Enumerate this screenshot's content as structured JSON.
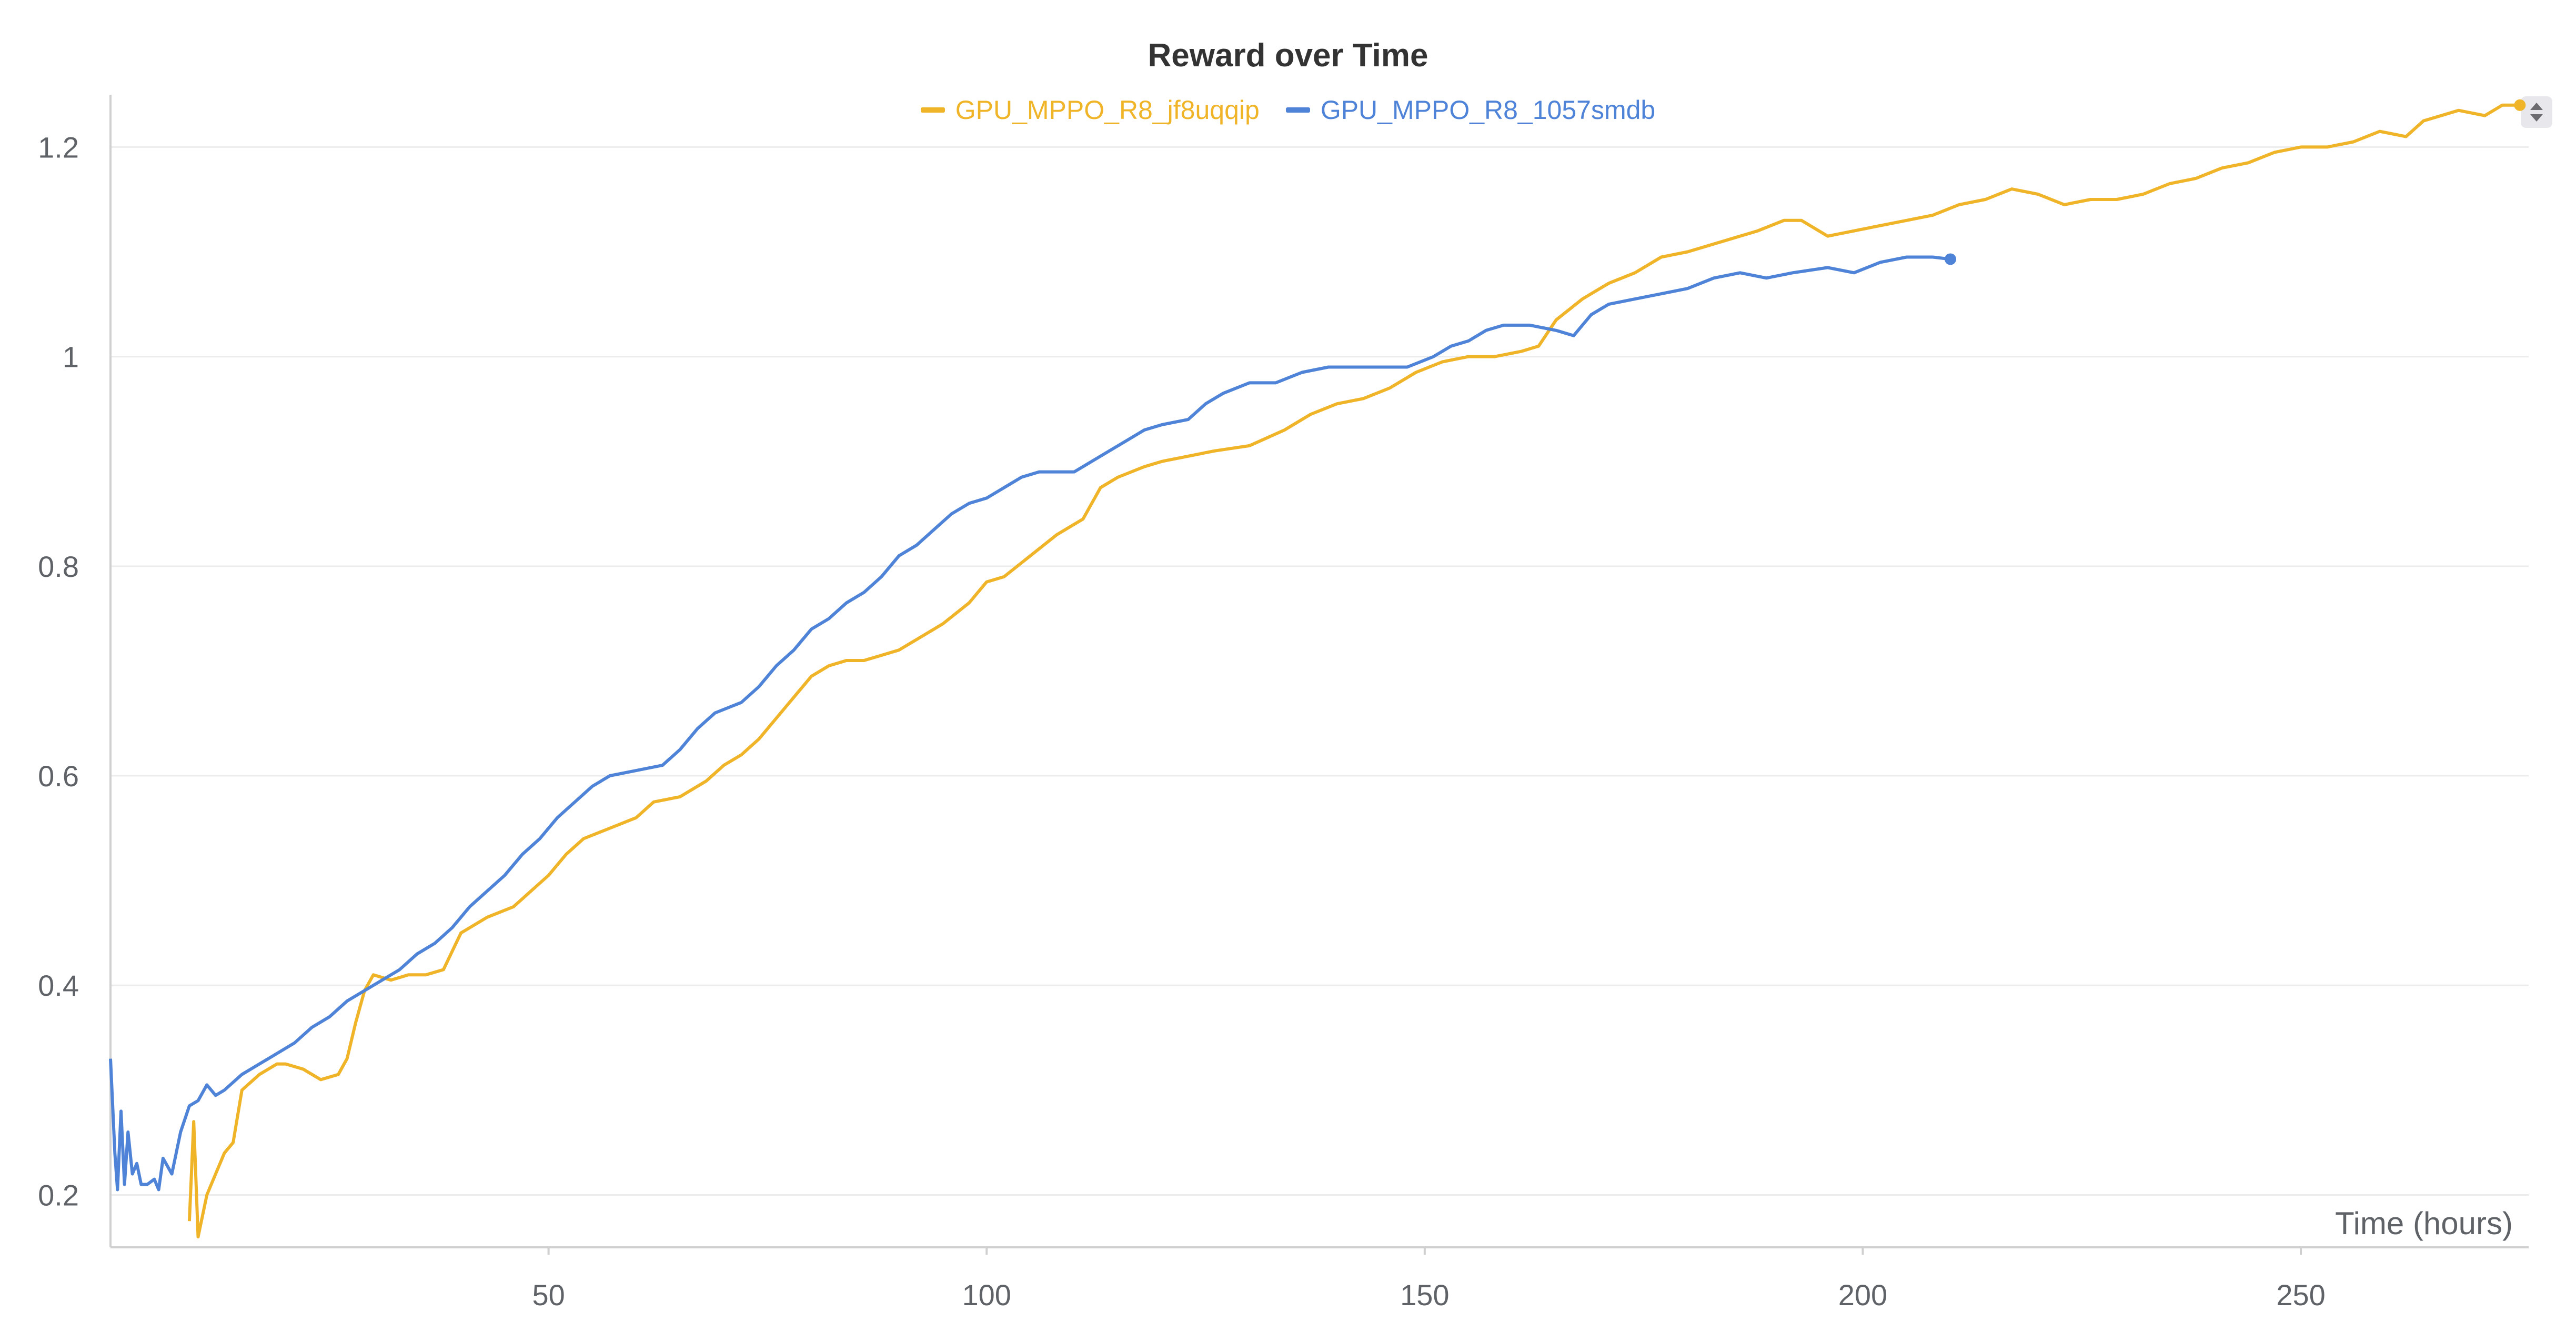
{
  "chart_data": {
    "type": "line",
    "title": "Reward over Time",
    "xlabel": "Time (hours)",
    "ylabel": "",
    "xlim": [
      0,
      276
    ],
    "ylim": [
      0.15,
      1.265
    ],
    "x_ticks": [
      50,
      100,
      150,
      200,
      250
    ],
    "y_ticks": [
      0.2,
      0.4,
      0.6,
      0.8,
      1,
      1.2
    ],
    "y_tick_labels": [
      "0.2",
      "0.4",
      "0.6",
      "0.8",
      "1",
      "1.2"
    ],
    "grid": "horizontal",
    "legend_position": "top-center",
    "series": [
      {
        "name": "GPU_MPPO_R8_jf8uqqip",
        "color": "#f0b429",
        "points": [
          [
            9,
            0.175
          ],
          [
            9.5,
            0.27
          ],
          [
            10,
            0.16
          ],
          [
            11,
            0.2
          ],
          [
            12,
            0.22
          ],
          [
            13,
            0.24
          ],
          [
            14,
            0.25
          ],
          [
            15,
            0.3
          ],
          [
            17,
            0.315
          ],
          [
            19,
            0.325
          ],
          [
            20,
            0.325
          ],
          [
            22,
            0.32
          ],
          [
            24,
            0.31
          ],
          [
            26,
            0.315
          ],
          [
            27,
            0.33
          ],
          [
            28,
            0.365
          ],
          [
            29,
            0.395
          ],
          [
            30,
            0.41
          ],
          [
            32,
            0.405
          ],
          [
            34,
            0.41
          ],
          [
            36,
            0.41
          ],
          [
            38,
            0.415
          ],
          [
            40,
            0.45
          ],
          [
            43,
            0.465
          ],
          [
            46,
            0.475
          ],
          [
            48,
            0.49
          ],
          [
            50,
            0.505
          ],
          [
            52,
            0.525
          ],
          [
            54,
            0.54
          ],
          [
            57,
            0.55
          ],
          [
            60,
            0.56
          ],
          [
            62,
            0.575
          ],
          [
            65,
            0.58
          ],
          [
            68,
            0.595
          ],
          [
            70,
            0.61
          ],
          [
            72,
            0.62
          ],
          [
            74,
            0.635
          ],
          [
            76,
            0.655
          ],
          [
            78,
            0.675
          ],
          [
            80,
            0.695
          ],
          [
            82,
            0.705
          ],
          [
            84,
            0.71
          ],
          [
            86,
            0.71
          ],
          [
            88,
            0.715
          ],
          [
            90,
            0.72
          ],
          [
            92,
            0.73
          ],
          [
            95,
            0.745
          ],
          [
            98,
            0.765
          ],
          [
            100,
            0.785
          ],
          [
            102,
            0.79
          ],
          [
            105,
            0.81
          ],
          [
            108,
            0.83
          ],
          [
            111,
            0.845
          ],
          [
            112,
            0.86
          ],
          [
            113,
            0.875
          ],
          [
            115,
            0.885
          ],
          [
            118,
            0.895
          ],
          [
            120,
            0.9
          ],
          [
            123,
            0.905
          ],
          [
            126,
            0.91
          ],
          [
            130,
            0.915
          ],
          [
            134,
            0.93
          ],
          [
            137,
            0.945
          ],
          [
            140,
            0.955
          ],
          [
            143,
            0.96
          ],
          [
            146,
            0.97
          ],
          [
            149,
            0.985
          ],
          [
            152,
            0.995
          ],
          [
            155,
            1.0
          ],
          [
            158,
            1.0
          ],
          [
            161,
            1.005
          ],
          [
            163,
            1.01
          ],
          [
            165,
            1.035
          ],
          [
            168,
            1.055
          ],
          [
            171,
            1.07
          ],
          [
            174,
            1.08
          ],
          [
            177,
            1.095
          ],
          [
            180,
            1.1
          ],
          [
            184,
            1.11
          ],
          [
            188,
            1.12
          ],
          [
            191,
            1.13
          ],
          [
            193,
            1.13
          ],
          [
            196,
            1.115
          ],
          [
            199,
            1.12
          ],
          [
            202,
            1.125
          ],
          [
            205,
            1.13
          ],
          [
            208,
            1.135
          ],
          [
            211,
            1.145
          ],
          [
            214,
            1.15
          ],
          [
            217,
            1.16
          ],
          [
            220,
            1.155
          ],
          [
            223,
            1.145
          ],
          [
            226,
            1.15
          ],
          [
            229,
            1.15
          ],
          [
            232,
            1.155
          ],
          [
            235,
            1.165
          ],
          [
            238,
            1.17
          ],
          [
            241,
            1.18
          ],
          [
            244,
            1.185
          ],
          [
            247,
            1.195
          ],
          [
            250,
            1.2
          ],
          [
            253,
            1.2
          ],
          [
            256,
            1.205
          ],
          [
            259,
            1.215
          ],
          [
            262,
            1.21
          ],
          [
            264,
            1.225
          ],
          [
            266,
            1.23
          ],
          [
            268,
            1.235
          ],
          [
            271,
            1.23
          ],
          [
            273,
            1.24
          ],
          [
            275,
            1.24
          ]
        ]
      },
      {
        "name": "GPU_MPPO_R8_1057smdb",
        "color": "#4e83d7",
        "points": [
          [
            0,
            0.33
          ],
          [
            0.5,
            0.24
          ],
          [
            0.8,
            0.205
          ],
          [
            1.2,
            0.28
          ],
          [
            1.6,
            0.21
          ],
          [
            2,
            0.26
          ],
          [
            2.5,
            0.22
          ],
          [
            3,
            0.23
          ],
          [
            3.5,
            0.21
          ],
          [
            4.2,
            0.21
          ],
          [
            5,
            0.215
          ],
          [
            5.5,
            0.205
          ],
          [
            6,
            0.235
          ],
          [
            7,
            0.22
          ],
          [
            7.5,
            0.24
          ],
          [
            8,
            0.26
          ],
          [
            9,
            0.285
          ],
          [
            10,
            0.29
          ],
          [
            11,
            0.305
          ],
          [
            12,
            0.295
          ],
          [
            13,
            0.3
          ],
          [
            15,
            0.315
          ],
          [
            17,
            0.325
          ],
          [
            19,
            0.335
          ],
          [
            21,
            0.345
          ],
          [
            23,
            0.36
          ],
          [
            25,
            0.37
          ],
          [
            27,
            0.385
          ],
          [
            29,
            0.395
          ],
          [
            31,
            0.405
          ],
          [
            33,
            0.415
          ],
          [
            35,
            0.43
          ],
          [
            37,
            0.44
          ],
          [
            39,
            0.455
          ],
          [
            41,
            0.475
          ],
          [
            43,
            0.49
          ],
          [
            45,
            0.505
          ],
          [
            47,
            0.525
          ],
          [
            49,
            0.54
          ],
          [
            51,
            0.56
          ],
          [
            53,
            0.575
          ],
          [
            55,
            0.59
          ],
          [
            57,
            0.6
          ],
          [
            60,
            0.605
          ],
          [
            63,
            0.61
          ],
          [
            65,
            0.625
          ],
          [
            67,
            0.645
          ],
          [
            69,
            0.66
          ],
          [
            72,
            0.67
          ],
          [
            74,
            0.685
          ],
          [
            76,
            0.705
          ],
          [
            78,
            0.72
          ],
          [
            80,
            0.74
          ],
          [
            82,
            0.75
          ],
          [
            84,
            0.765
          ],
          [
            86,
            0.775
          ],
          [
            88,
            0.79
          ],
          [
            90,
            0.81
          ],
          [
            92,
            0.82
          ],
          [
            94,
            0.835
          ],
          [
            96,
            0.85
          ],
          [
            98,
            0.86
          ],
          [
            100,
            0.865
          ],
          [
            102,
            0.875
          ],
          [
            104,
            0.885
          ],
          [
            106,
            0.89
          ],
          [
            110,
            0.89
          ],
          [
            112,
            0.9
          ],
          [
            114,
            0.91
          ],
          [
            116,
            0.92
          ],
          [
            118,
            0.93
          ],
          [
            120,
            0.935
          ],
          [
            123,
            0.94
          ],
          [
            125,
            0.955
          ],
          [
            127,
            0.965
          ],
          [
            130,
            0.975
          ],
          [
            133,
            0.975
          ],
          [
            136,
            0.985
          ],
          [
            139,
            0.99
          ],
          [
            142,
            0.99
          ],
          [
            145,
            0.99
          ],
          [
            148,
            0.99
          ],
          [
            151,
            1.0
          ],
          [
            153,
            1.01
          ],
          [
            155,
            1.015
          ],
          [
            157,
            1.025
          ],
          [
            159,
            1.03
          ],
          [
            162,
            1.03
          ],
          [
            165,
            1.025
          ],
          [
            167,
            1.02
          ],
          [
            169,
            1.04
          ],
          [
            171,
            1.05
          ],
          [
            174,
            1.055
          ],
          [
            177,
            1.06
          ],
          [
            180,
            1.065
          ],
          [
            183,
            1.075
          ],
          [
            186,
            1.08
          ],
          [
            189,
            1.075
          ],
          [
            192,
            1.08
          ],
          [
            196,
            1.085
          ],
          [
            199,
            1.08
          ],
          [
            202,
            1.09
          ],
          [
            205,
            1.095
          ],
          [
            208,
            1.095
          ],
          [
            210,
            1.093
          ]
        ]
      }
    ]
  },
  "controls": {
    "scroll_icon": "up-down-arrow-icon"
  }
}
